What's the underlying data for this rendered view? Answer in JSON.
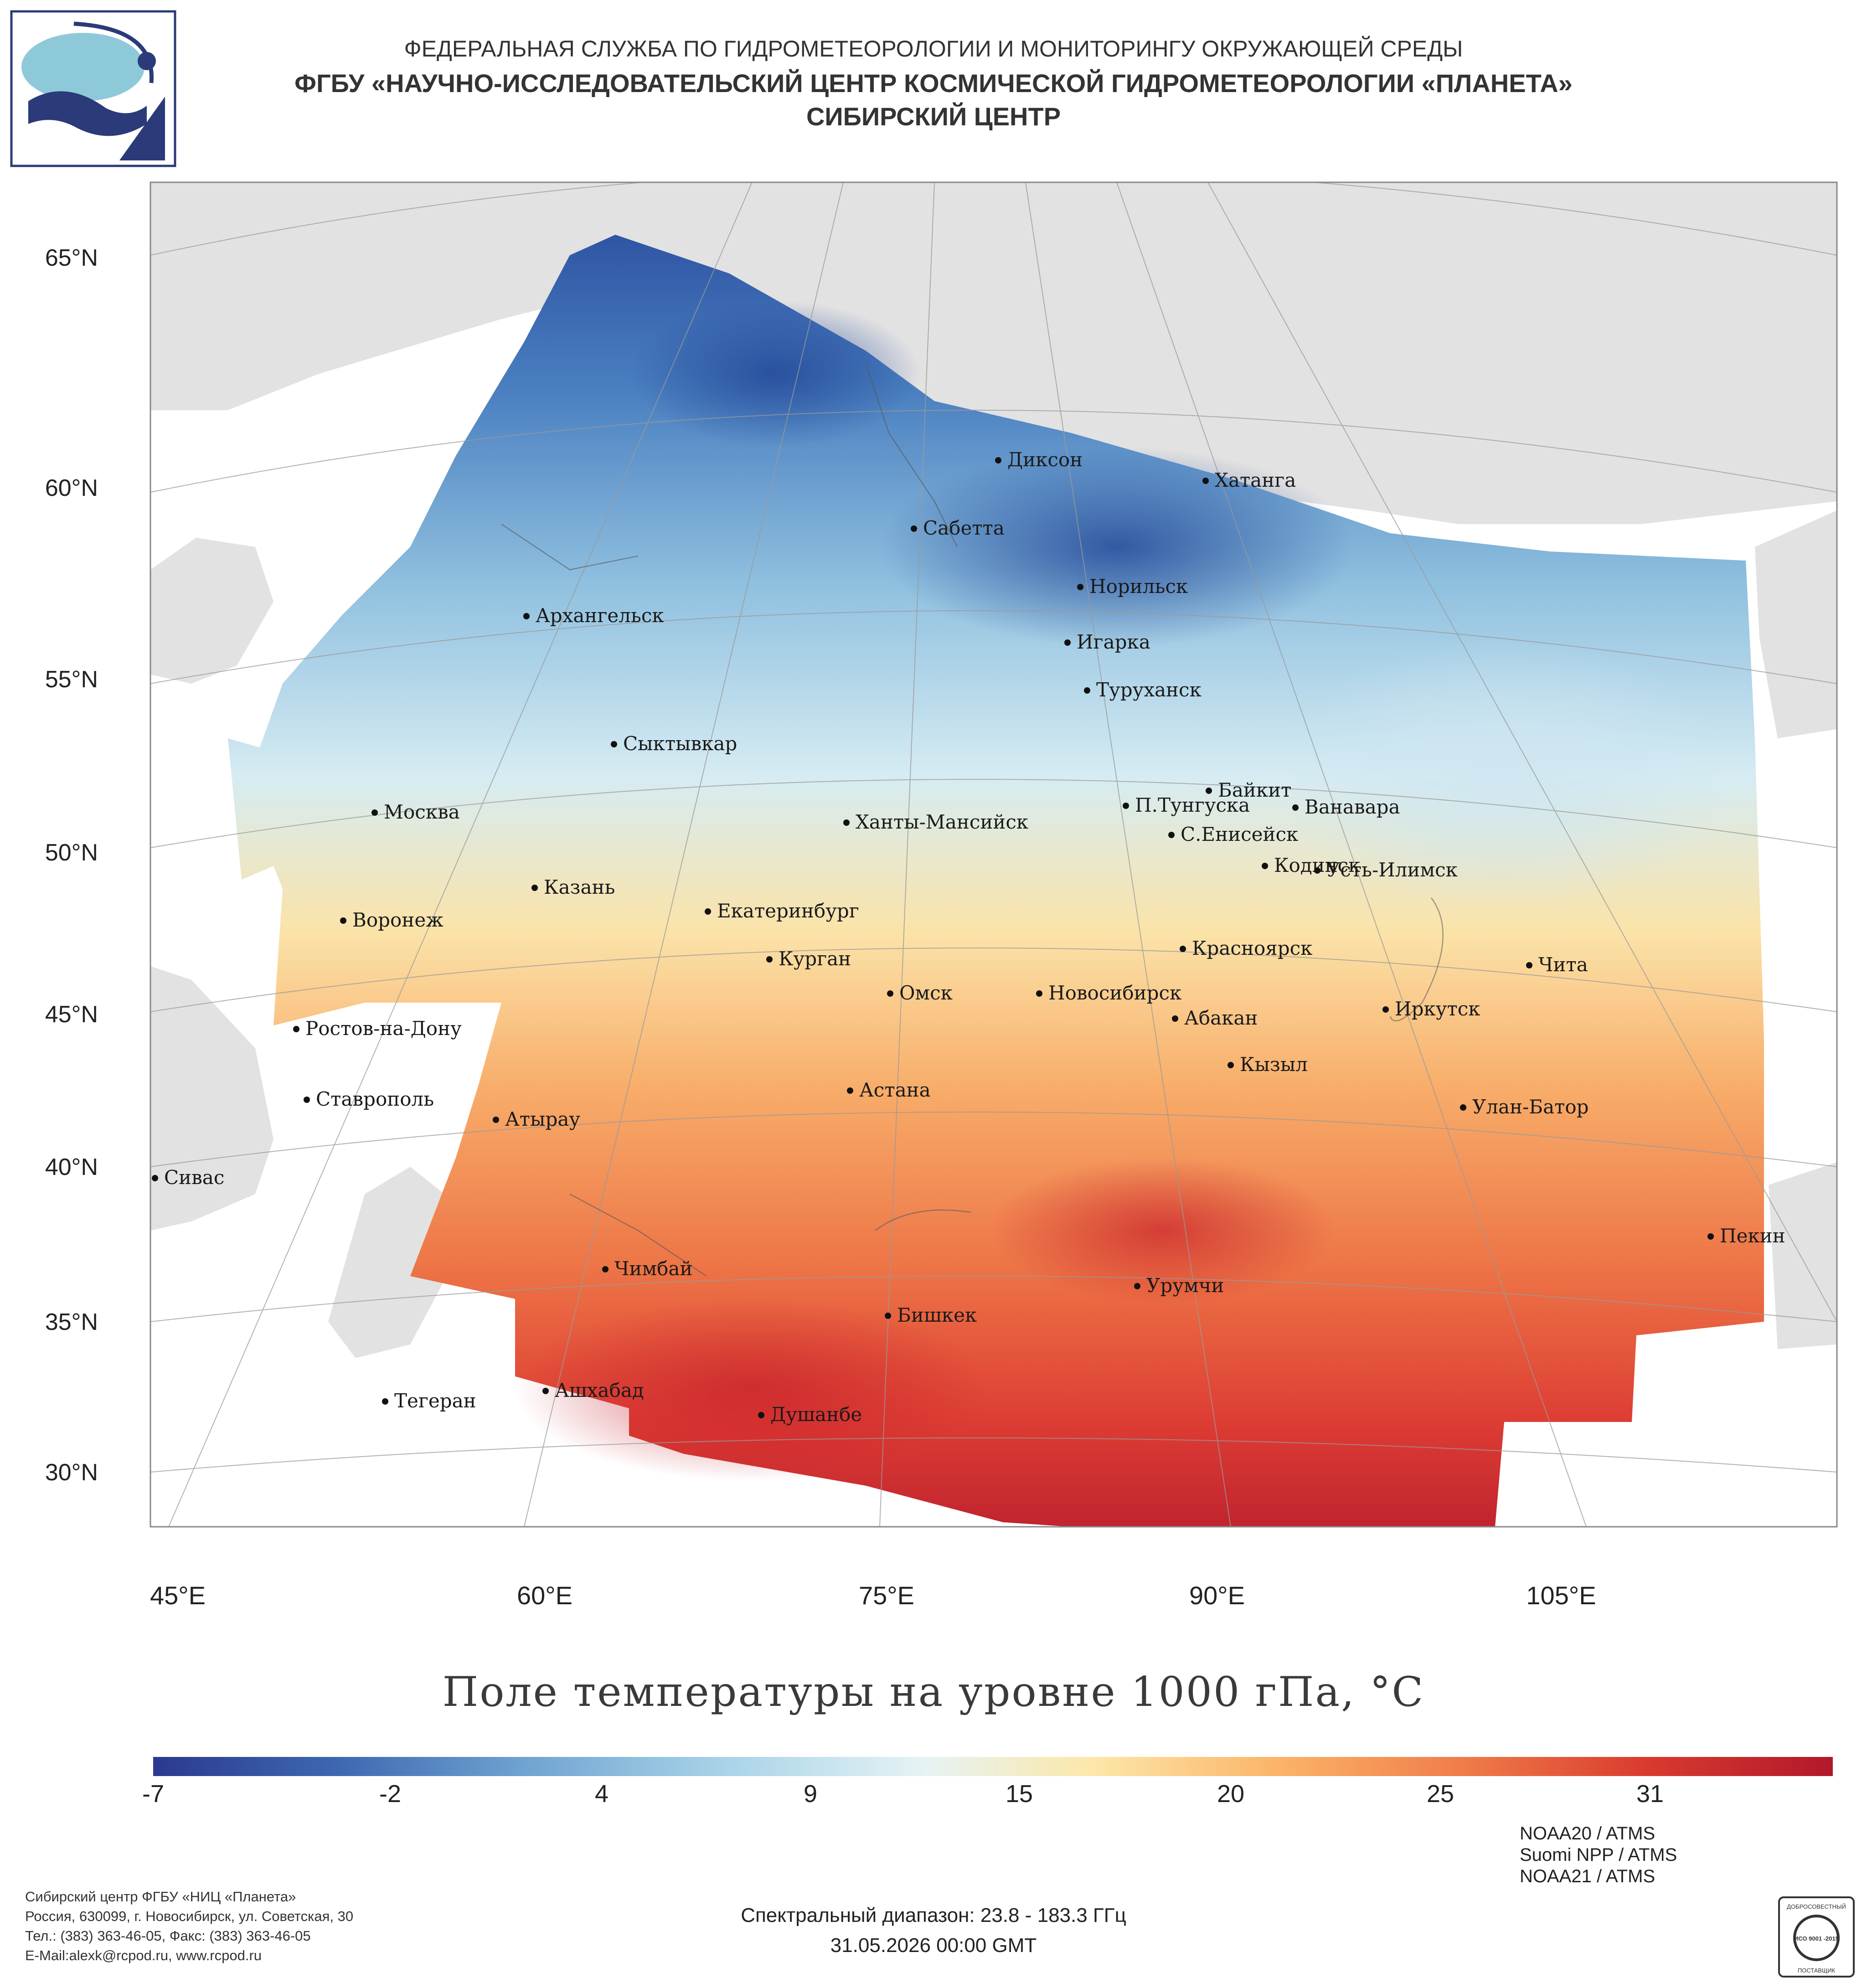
{
  "header": {
    "line1": "ФЕДЕРАЛЬНАЯ СЛУЖБА ПО ГИДРОМЕТЕОРОЛОГИИ И МОНИТОРИНГУ ОКРУЖАЮЩЕЙ СРЕДЫ",
    "line2": "ФГБУ «НАУЧНО-ИССЛЕДОВАТЕЛЬСКИЙ ЦЕНТР КОСМИЧЕСКОЙ ГИДРОМЕТЕОРОЛОГИИ «ПЛАНЕТА»",
    "line3": "СИБИРСКИЙ ЦЕНТР"
  },
  "map": {
    "title": "Поле температуры на уровне 1000 гПа, °C",
    "lat_labels": [
      "65°N",
      "60°N",
      "55°N",
      "50°N",
      "45°N",
      "40°N",
      "35°N",
      "30°N"
    ],
    "lon_labels": [
      "45°E",
      "60°E",
      "75°E",
      "90°E",
      "105°E"
    ],
    "cities": [
      "Диксон",
      "Хатанга",
      "Сабетта",
      "Норильск",
      "Архангельск",
      "Игарка",
      "Туруханск",
      "Сыктывкар",
      "Байкит",
      "Москва",
      "П.Тунгуска",
      "Ванавара",
      "Ханты-Мансийск",
      "С.Енисейск",
      "Казань",
      "Кодинск",
      "Усть-Илимск",
      "Екатеринбург",
      "Воронеж",
      "Красноярск",
      "Курган",
      "Чита",
      "Омск",
      "Новосибирск",
      "Ростов-на-Дону",
      "Иркутск",
      "Абакан",
      "Кызыл",
      "Ставрополь",
      "Астана",
      "Улан-Батор",
      "Атырау",
      "Сивас",
      "Пекин",
      "Чимбай",
      "Урумчи",
      "Бишкек",
      "Ашхабад",
      "Тегеран",
      "Душанбе"
    ]
  },
  "colorbar": {
    "tick_labels": [
      "-7",
      "-2",
      "4",
      "9",
      "15",
      "20",
      "25",
      "31"
    ],
    "colors": [
      "#2b3990",
      "#3e68b1",
      "#6fa3d1",
      "#a9d3e8",
      "#e6f3f4",
      "#fce7a8",
      "#fbb468",
      "#f07c49",
      "#d93a2e",
      "#b2182b"
    ]
  },
  "footer": {
    "org_lines": [
      "Сибирский центр ФГБУ «НИЦ «Планета»",
      "Россия, 630099, г. Новосибирск, ул. Советская, 30",
      "Тел.: (383) 363-46-05, Факс: (383) 363-46-05",
      "E-Mail:alexk@rcpod.ru, www.rcpod.ru"
    ],
    "spectral": "Спектральный диапазон: 23.8 - 183.3 ГГц",
    "datetime": "31.05.2026 00:00 GMT",
    "satellites": [
      "NOAA20 / ATMS",
      "Suomi NPP / ATMS",
      "NOAA21 / ATMS"
    ],
    "iso_badge": {
      "top_text": "ДОБРОСОВЕСТНЫЙ",
      "center_text": "ИСО 9001 -2015",
      "bottom_text": "ПОСТАВЩИК"
    }
  }
}
